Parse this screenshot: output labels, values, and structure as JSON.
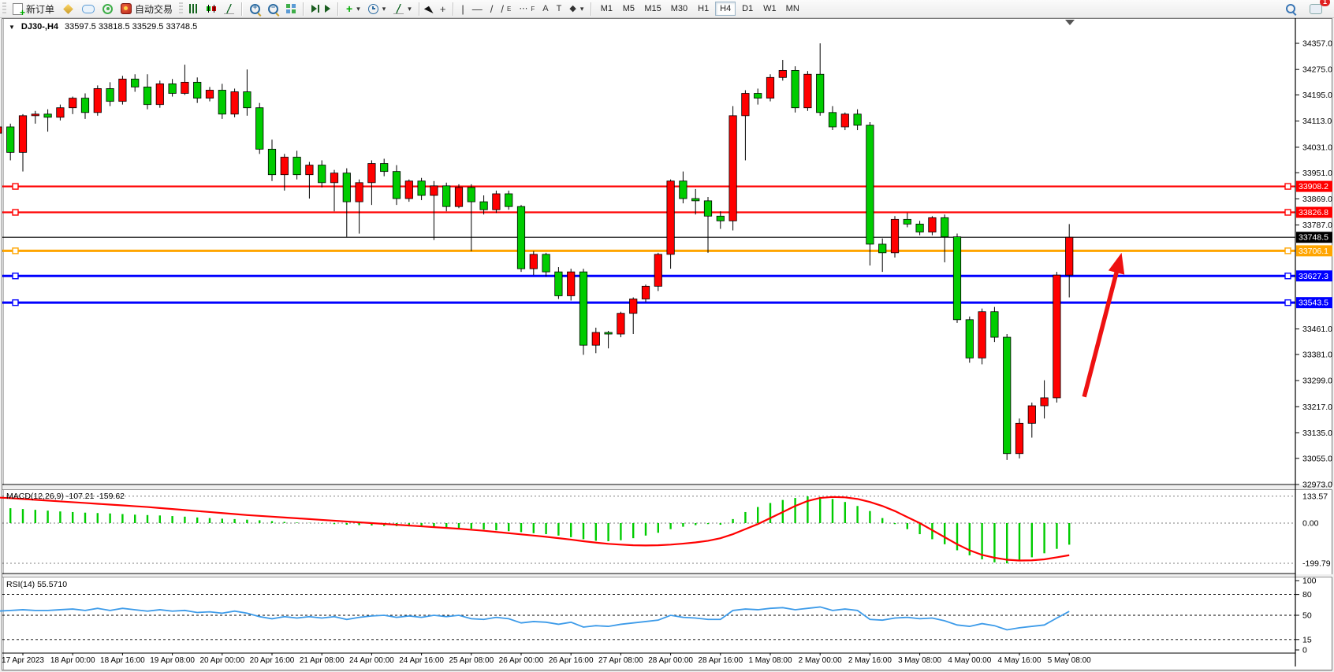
{
  "toolbar": {
    "new_order": "新订单",
    "auto_trading": "自动交易",
    "timeframes": [
      "M1",
      "M5",
      "M15",
      "M30",
      "H1",
      "H4",
      "D1",
      "W1",
      "MN"
    ],
    "active_timeframe": "H4",
    "notification_count": "1",
    "glyphs": {
      "caret": "▾",
      "crosshair": "+",
      "vline": "|",
      "hline": "—",
      "trendline": "/",
      "equichannel": "E",
      "fibo": "F",
      "text": "A",
      "label": "T",
      "shapes": "◆",
      "zoom_in": "+",
      "zoom_out": "−"
    }
  },
  "chart": {
    "symbol": "DJ30-,H4",
    "ohlc_line": "33597.5 33818.5 33529.5 33748.5"
  },
  "chart_data": {
    "type": "candlestick",
    "timeframe": "H4",
    "title": "DJ30-,H4",
    "up_color": "#ff0000",
    "down_color": "#00cc00",
    "wick_color": "#000000",
    "ylim": [
      32973,
      34433
    ],
    "y_ticks": [
      "34357.0",
      "34275.0",
      "34195.0",
      "34113.0",
      "34031.0",
      "33951.0",
      "33869.0",
      "33787.0",
      "33461.0",
      "33381.0",
      "33299.0",
      "33217.0",
      "33135.0",
      "33055.0",
      "32973.0"
    ],
    "x_labels": [
      "17 Apr 2023",
      "18 Apr 00:00",
      "18 Apr 16:00",
      "19 Apr 08:00",
      "20 Apr 00:00",
      "20 Apr 16:00",
      "21 Apr 08:00",
      "24 Apr 00:00",
      "24 Apr 16:00",
      "25 Apr 08:00",
      "26 Apr 00:00",
      "26 Apr 16:00",
      "27 Apr 08:00",
      "28 Apr 00:00",
      "28 Apr 16:00",
      "1 May 08:00",
      "2 May 00:00",
      "2 May 16:00",
      "3 May 08:00",
      "4 May 00:00",
      "4 May 16:00",
      "5 May 08:00"
    ],
    "candles": [
      [
        34075,
        34110,
        34040,
        34095
      ],
      [
        34095,
        34105,
        33990,
        34015
      ],
      [
        34015,
        34135,
        33955,
        34130
      ],
      [
        34130,
        34145,
        34105,
        34135
      ],
      [
        34135,
        34150,
        34080,
        34125
      ],
      [
        34125,
        34165,
        34115,
        34155
      ],
      [
        34155,
        34190,
        34135,
        34185
      ],
      [
        34185,
        34200,
        34120,
        34140
      ],
      [
        34140,
        34225,
        34130,
        34215
      ],
      [
        34215,
        34235,
        34160,
        34175
      ],
      [
        34175,
        34255,
        34165,
        34245
      ],
      [
        34245,
        34260,
        34205,
        34220
      ],
      [
        34220,
        34260,
        34150,
        34165
      ],
      [
        34165,
        34240,
        34155,
        34230
      ],
      [
        34230,
        34245,
        34190,
        34200
      ],
      [
        34200,
        34290,
        34195,
        34235
      ],
      [
        34235,
        34250,
        34170,
        34185
      ],
      [
        34185,
        34220,
        34175,
        34210
      ],
      [
        34210,
        34230,
        34120,
        34135
      ],
      [
        34135,
        34215,
        34125,
        34205
      ],
      [
        34205,
        34275,
        34130,
        34155
      ],
      [
        34155,
        34170,
        34010,
        34025
      ],
      [
        34025,
        34055,
        33925,
        33945
      ],
      [
        33945,
        34010,
        33895,
        34000
      ],
      [
        34000,
        34020,
        33930,
        33945
      ],
      [
        33945,
        33985,
        33870,
        33975
      ],
      [
        33975,
        33990,
        33905,
        33920
      ],
      [
        33920,
        33960,
        33830,
        33950
      ],
      [
        33950,
        33965,
        33750,
        33860
      ],
      [
        33860,
        33930,
        33760,
        33920
      ],
      [
        33920,
        33990,
        33850,
        33980
      ],
      [
        33980,
        33995,
        33940,
        33955
      ],
      [
        33955,
        33975,
        33850,
        33870
      ],
      [
        33870,
        33930,
        33860,
        33925
      ],
      [
        33925,
        33935,
        33865,
        33880
      ],
      [
        33880,
        33925,
        33740,
        33910
      ],
      [
        33910,
        33920,
        33830,
        33845
      ],
      [
        33845,
        33915,
        33840,
        33905
      ],
      [
        33905,
        33915,
        33705,
        33860
      ],
      [
        33860,
        33880,
        33820,
        33835
      ],
      [
        33835,
        33895,
        33825,
        33885
      ],
      [
        33885,
        33895,
        33835,
        33845
      ],
      [
        33845,
        33850,
        33640,
        33650
      ],
      [
        33650,
        33705,
        33630,
        33695
      ],
      [
        33695,
        33700,
        33625,
        33640
      ],
      [
        33640,
        33655,
        33555,
        33565
      ],
      [
        33565,
        33650,
        33550,
        33640
      ],
      [
        33640,
        33650,
        33380,
        33410
      ],
      [
        33410,
        33465,
        33385,
        33450
      ],
      [
        33450,
        33455,
        33400,
        33445
      ],
      [
        33445,
        33515,
        33435,
        33510
      ],
      [
        33510,
        33560,
        33445,
        33555
      ],
      [
        33555,
        33600,
        33545,
        33595
      ],
      [
        33595,
        33700,
        33580,
        33695
      ],
      [
        33695,
        33930,
        33650,
        33925
      ],
      [
        33925,
        33955,
        33855,
        33870
      ],
      [
        33870,
        33900,
        33820,
        33863
      ],
      [
        33863,
        33875,
        33700,
        33815
      ],
      [
        33815,
        33830,
        33775,
        33800
      ],
      [
        33800,
        34160,
        33770,
        34130
      ],
      [
        34130,
        34210,
        33990,
        34200
      ],
      [
        34200,
        34215,
        34165,
        34185
      ],
      [
        34185,
        34260,
        34175,
        34250
      ],
      [
        34250,
        34305,
        34240,
        34272
      ],
      [
        34272,
        34285,
        34140,
        34155
      ],
      [
        34155,
        34270,
        34145,
        34260
      ],
      [
        34260,
        34357,
        34130,
        34140
      ],
      [
        34140,
        34160,
        34085,
        34095
      ],
      [
        34095,
        34140,
        34085,
        34135
      ],
      [
        34135,
        34150,
        34085,
        34100
      ],
      [
        34100,
        34110,
        33660,
        33727
      ],
      [
        33727,
        33745,
        33640,
        33700
      ],
      [
        33700,
        33815,
        33685,
        33805
      ],
      [
        33805,
        33825,
        33780,
        33790
      ],
      [
        33790,
        33800,
        33755,
        33765
      ],
      [
        33765,
        33815,
        33755,
        33810
      ],
      [
        33810,
        33820,
        33670,
        33750
      ],
      [
        33750,
        33760,
        33480,
        33490
      ],
      [
        33490,
        33500,
        33355,
        33370
      ],
      [
        33370,
        33525,
        33350,
        33515
      ],
      [
        33515,
        33530,
        33420,
        33435
      ],
      [
        33435,
        33445,
        33050,
        33070
      ],
      [
        33070,
        33180,
        33055,
        33165
      ],
      [
        33165,
        33230,
        33120,
        33220
      ],
      [
        33220,
        33300,
        33180,
        33245
      ],
      [
        33245,
        33640,
        33230,
        33630
      ],
      [
        33630,
        33790,
        33560,
        33748.5
      ]
    ]
  },
  "overlays": {
    "hlines": [
      {
        "label": "33908.2",
        "price": 33908.2,
        "color": "#ff0000",
        "width": 2.2
      },
      {
        "label": "33826.8",
        "price": 33826.8,
        "color": "#ff0000",
        "width": 2.2
      },
      {
        "label": "33706.1",
        "price": 33706.1,
        "color": "#ffa500",
        "width": 3
      },
      {
        "label": "33627.3",
        "price": 33627.3,
        "color": "#0000ff",
        "width": 3
      },
      {
        "label": "33543.5",
        "price": 33543.5,
        "color": "#0000ff",
        "width": 3
      }
    ],
    "current_price": {
      "label": "33748.5",
      "price": 33748.5,
      "color": "#000000"
    },
    "trend_arrow": {
      "color": "#ee1111",
      "from": {
        "bar": 87.2,
        "price": 33248
      },
      "to": {
        "bar": 90.2,
        "price": 33700
      }
    }
  },
  "macd": {
    "label": "MACD(12,26,9) -107.21 -159.62",
    "macd_value": -107.21,
    "signal_value": -159.62,
    "hist_color": "#00cc00",
    "signal_color": "#ff0000",
    "axis_labels": [
      "133.57",
      "0.00",
      "-199.79"
    ],
    "axis_values": [
      133.57,
      0,
      -199.79
    ],
    "histogram": [
      78,
      74,
      70,
      66,
      62,
      58,
      55,
      52,
      50,
      48,
      45,
      42,
      40,
      38,
      35,
      32,
      28,
      25,
      22,
      20,
      17,
      14,
      10,
      6,
      3,
      1,
      -2,
      -5,
      -8,
      -10,
      -12,
      -14,
      -15,
      -16,
      -18,
      -20,
      -22,
      -25,
      -28,
      -32,
      -36,
      -40,
      -45,
      -50,
      -55,
      -62,
      -70,
      -80,
      -88,
      -90,
      -85,
      -75,
      -62,
      -48,
      -30,
      -18,
      -10,
      -5,
      -8,
      20,
      55,
      80,
      100,
      115,
      125,
      133,
      130,
      120,
      105,
      85,
      60,
      25,
      -5,
      -30,
      -55,
      -80,
      -105,
      -135,
      -160,
      -180,
      -195,
      -200,
      -190,
      -170,
      -150,
      -128,
      -107.21
    ],
    "signal": [
      127,
      124,
      120,
      116,
      112,
      108,
      104,
      100,
      96,
      92,
      88,
      84,
      80,
      75,
      70,
      65,
      60,
      55,
      50,
      45,
      40,
      36,
      32,
      28,
      24,
      20,
      16,
      12,
      8,
      4,
      0,
      -4,
      -8,
      -12,
      -16,
      -20,
      -24,
      -28,
      -33,
      -38,
      -44,
      -50,
      -56,
      -62,
      -68,
      -75,
      -82,
      -90,
      -97,
      -103,
      -107,
      -110,
      -111,
      -110,
      -107,
      -102,
      -96,
      -88,
      -75,
      -55,
      -30,
      -5,
      25,
      55,
      85,
      110,
      125,
      130,
      128,
      120,
      105,
      85,
      60,
      30,
      0,
      -35,
      -70,
      -105,
      -135,
      -158,
      -172,
      -182,
      -186,
      -185,
      -180,
      -170,
      -159.62
    ]
  },
  "rsi": {
    "label": "RSI(14) 55.5710",
    "value": 55.571,
    "line_color": "#3d9be9",
    "levels": [
      80,
      50,
      15
    ],
    "axis_labels": [
      "100",
      "80",
      "50",
      "15",
      "0"
    ],
    "axis_values": [
      100,
      80,
      50,
      15,
      0
    ],
    "series": [
      56,
      57,
      58,
      57,
      57,
      58,
      59,
      57,
      60,
      57,
      60,
      58,
      56,
      58,
      56,
      57,
      54,
      55,
      53,
      56,
      53,
      48,
      45,
      48,
      46,
      48,
      46,
      48,
      44,
      47,
      49,
      50,
      47,
      49,
      47,
      50,
      48,
      50,
      45,
      44,
      47,
      45,
      39,
      41,
      40,
      37,
      40,
      33,
      35,
      34,
      37,
      39,
      41,
      43,
      50,
      47,
      46,
      44,
      44,
      57,
      59,
      58,
      60,
      61,
      58,
      60,
      62,
      57,
      59,
      57,
      44,
      43,
      46,
      47,
      45,
      46,
      42,
      36,
      34,
      38,
      35,
      29,
      32,
      34,
      36,
      46,
      55.57
    ]
  }
}
